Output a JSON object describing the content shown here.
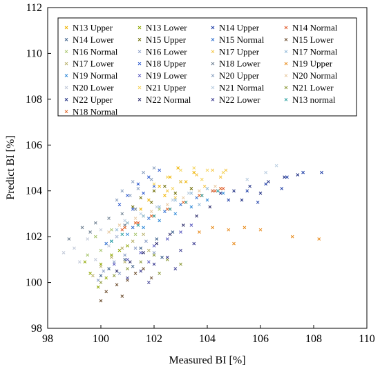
{
  "chart_data": {
    "type": "scatter",
    "xlabel": "Measured BI [%]",
    "ylabel": "Predict BI [%]",
    "xlim": [
      98,
      110
    ],
    "ylim": [
      98,
      112
    ],
    "xticks": [
      "98",
      "100",
      "102",
      "104",
      "106",
      "108",
      "110"
    ],
    "yticks": [
      "98",
      "100",
      "102",
      "104",
      "106",
      "108",
      "110",
      "112"
    ],
    "grid": false,
    "legend_position": "top",
    "marker": "x",
    "series": [
      {
        "name": "N13 Upper",
        "color": "#f0b400",
        "points": [
          [
            101.8,
            103.6
          ],
          [
            102.2,
            104.2
          ],
          [
            102.6,
            104.6
          ],
          [
            102.9,
            105.0
          ],
          [
            103.2,
            104.4
          ],
          [
            102.4,
            103.8
          ],
          [
            101.5,
            103.2
          ],
          [
            103.5,
            104.8
          ]
        ]
      },
      {
        "name": "N13 Lower",
        "color": "#8fa800",
        "points": [
          [
            99.6,
            100.4
          ],
          [
            100.0,
            100.8
          ],
          [
            100.4,
            101.2
          ],
          [
            100.2,
            100.2
          ],
          [
            99.9,
            99.8
          ],
          [
            100.7,
            101.4
          ],
          [
            101.0,
            101.6
          ],
          [
            99.4,
            100.9
          ]
        ]
      },
      {
        "name": "N14 Upper",
        "color": "#1f3fa8",
        "points": [
          [
            104.8,
            103.6
          ],
          [
            105.5,
            104.0
          ],
          [
            106.2,
            104.3
          ],
          [
            107.0,
            104.6
          ],
          [
            107.6,
            104.8
          ],
          [
            106.8,
            104.1
          ],
          [
            108.3,
            104.8
          ],
          [
            105.9,
            103.5
          ]
        ]
      },
      {
        "name": "N14 Normal",
        "color": "#e0592a",
        "points": [
          [
            101.4,
            102.6
          ],
          [
            102.0,
            102.9
          ],
          [
            102.6,
            103.2
          ],
          [
            103.2,
            103.5
          ],
          [
            103.8,
            103.8
          ],
          [
            104.3,
            104.0
          ],
          [
            100.8,
            102.3
          ],
          [
            104.6,
            104.1
          ]
        ]
      },
      {
        "name": "N14 Lower",
        "color": "#3b5f8a",
        "points": [
          [
            100.3,
            100.6
          ],
          [
            100.9,
            101.0
          ],
          [
            101.5,
            101.5
          ],
          [
            102.1,
            101.9
          ],
          [
            102.7,
            102.2
          ],
          [
            101.2,
            100.7
          ],
          [
            100.0,
            100.3
          ],
          [
            102.3,
            101.1
          ]
        ]
      },
      {
        "name": "N15 Upper",
        "color": "#6b6a00",
        "points": [
          [
            101.5,
            103.7
          ],
          [
            102.0,
            104.0
          ],
          [
            102.4,
            104.2
          ],
          [
            103.0,
            104.4
          ],
          [
            101.2,
            103.3
          ],
          [
            102.8,
            103.9
          ],
          [
            103.4,
            104.1
          ],
          [
            101.9,
            103.5
          ]
        ]
      },
      {
        "name": "N15 Normal",
        "color": "#2f6fd0",
        "points": [
          [
            100.6,
            102.0
          ],
          [
            101.2,
            102.4
          ],
          [
            101.8,
            102.8
          ],
          [
            102.4,
            103.1
          ],
          [
            103.0,
            103.4
          ],
          [
            103.6,
            103.7
          ],
          [
            104.2,
            104.0
          ],
          [
            100.2,
            101.7
          ]
        ]
      },
      {
        "name": "N15 Lower",
        "color": "#6a4a2a",
        "points": [
          [
            100.2,
            99.6
          ],
          [
            100.6,
            99.9
          ],
          [
            101.0,
            100.1
          ],
          [
            101.3,
            100.4
          ],
          [
            101.6,
            100.6
          ],
          [
            100.0,
            99.2
          ],
          [
            101.9,
            100.2
          ],
          [
            100.8,
            99.4
          ]
        ]
      },
      {
        "name": "N16 Normal",
        "color": "#a6c46a",
        "points": [
          [
            99.8,
            102.0
          ],
          [
            100.4,
            102.3
          ],
          [
            101.0,
            102.6
          ],
          [
            101.6,
            102.9
          ],
          [
            102.2,
            103.2
          ],
          [
            100.0,
            101.4
          ],
          [
            99.5,
            101.2
          ],
          [
            101.3,
            102.1
          ]
        ]
      },
      {
        "name": "N16 Lower",
        "color": "#8a9ec8",
        "points": [
          [
            100.1,
            100.5
          ],
          [
            100.5,
            100.9
          ],
          [
            100.9,
            101.2
          ],
          [
            101.3,
            101.5
          ],
          [
            101.7,
            101.8
          ],
          [
            99.9,
            100.1
          ],
          [
            102.0,
            101.3
          ],
          [
            100.7,
            100.4
          ]
        ]
      },
      {
        "name": "N17 Upper",
        "color": "#f5c542",
        "points": [
          [
            102.5,
            104.0
          ],
          [
            103.0,
            104.4
          ],
          [
            103.6,
            104.7
          ],
          [
            104.2,
            104.9
          ],
          [
            104.7,
            104.9
          ],
          [
            102.8,
            103.7
          ],
          [
            103.9,
            104.2
          ],
          [
            104.5,
            104.6
          ]
        ]
      },
      {
        "name": "N17 Normal",
        "color": "#8fb8d8",
        "points": [
          [
            101.0,
            102.6
          ],
          [
            101.6,
            102.9
          ],
          [
            102.2,
            103.3
          ],
          [
            102.8,
            103.6
          ],
          [
            103.4,
            103.9
          ],
          [
            104.0,
            104.1
          ],
          [
            100.6,
            102.3
          ],
          [
            103.7,
            103.4
          ]
        ]
      },
      {
        "name": "N17 Lower",
        "color": "#b7b06a",
        "points": [
          [
            100.0,
            100.7
          ],
          [
            100.4,
            101.1
          ],
          [
            100.8,
            101.5
          ],
          [
            101.2,
            101.8
          ],
          [
            101.6,
            102.1
          ],
          [
            99.7,
            100.3
          ],
          [
            101.8,
            101.4
          ],
          [
            100.9,
            100.9
          ]
        ]
      },
      {
        "name": "N18 Upper",
        "color": "#2e5bd0",
        "points": [
          [
            101.0,
            103.8
          ],
          [
            101.4,
            104.3
          ],
          [
            101.8,
            104.6
          ],
          [
            102.2,
            104.9
          ],
          [
            100.7,
            103.4
          ],
          [
            101.6,
            103.9
          ],
          [
            102.0,
            104.2
          ],
          [
            101.2,
            103.2
          ]
        ]
      },
      {
        "name": "N18 Lower",
        "color": "#6b7d8f",
        "points": [
          [
            99.3,
            102.4
          ],
          [
            99.8,
            102.6
          ],
          [
            100.3,
            102.8
          ],
          [
            100.8,
            103.0
          ],
          [
            101.3,
            103.2
          ],
          [
            98.8,
            101.9
          ],
          [
            99.6,
            102.2
          ],
          [
            100.9,
            102.5
          ]
        ]
      },
      {
        "name": "N19 Upper",
        "color": "#e88a1a",
        "points": [
          [
            103.7,
            102.2
          ],
          [
            104.2,
            102.4
          ],
          [
            104.8,
            102.3
          ],
          [
            105.4,
            102.4
          ],
          [
            106.0,
            102.3
          ],
          [
            107.2,
            102.0
          ],
          [
            108.2,
            101.9
          ],
          [
            105.0,
            101.7
          ]
        ]
      },
      {
        "name": "N19 Normal",
        "color": "#2c88d8",
        "points": [
          [
            100.4,
            101.8
          ],
          [
            101.0,
            102.1
          ],
          [
            101.6,
            102.4
          ],
          [
            102.2,
            102.7
          ],
          [
            102.8,
            103.0
          ],
          [
            103.4,
            103.3
          ],
          [
            104.0,
            103.6
          ],
          [
            104.6,
            103.9
          ]
        ]
      },
      {
        "name": "N19 Lower",
        "color": "#5a5ac0",
        "points": [
          [
            100.5,
            100.8
          ],
          [
            101.0,
            101.0
          ],
          [
            101.5,
            101.3
          ],
          [
            102.0,
            101.6
          ],
          [
            102.5,
            101.9
          ],
          [
            103.0,
            102.2
          ],
          [
            103.4,
            102.5
          ],
          [
            101.8,
            100.9
          ]
        ]
      },
      {
        "name": "N20 Upper",
        "color": "#8aa0c0",
        "points": [
          [
            100.8,
            104.0
          ],
          [
            101.2,
            104.4
          ],
          [
            101.6,
            104.8
          ],
          [
            102.0,
            105.0
          ],
          [
            100.6,
            103.6
          ],
          [
            101.4,
            104.1
          ],
          [
            101.9,
            104.5
          ],
          [
            101.1,
            103.8
          ]
        ]
      },
      {
        "name": "N20 Normal",
        "color": "#e8c9a0",
        "points": [
          [
            100.7,
            102.5
          ],
          [
            101.3,
            102.8
          ],
          [
            101.9,
            103.1
          ],
          [
            102.5,
            103.4
          ],
          [
            103.1,
            103.7
          ],
          [
            103.7,
            104.0
          ],
          [
            100.3,
            102.2
          ],
          [
            104.3,
            104.2
          ]
        ]
      },
      {
        "name": "N20 Lower",
        "color": "#c0c8d8",
        "points": [
          [
            99.0,
            101.5
          ],
          [
            99.5,
            101.9
          ],
          [
            100.0,
            102.3
          ],
          [
            98.6,
            101.3
          ],
          [
            99.8,
            101.0
          ],
          [
            100.3,
            101.6
          ],
          [
            99.2,
            100.9
          ],
          [
            100.6,
            102.0
          ]
        ]
      },
      {
        "name": "N21 Upper",
        "color": "#f5d560",
        "points": [
          [
            102.0,
            104.3
          ],
          [
            102.5,
            104.6
          ],
          [
            103.0,
            104.9
          ],
          [
            103.5,
            105.0
          ],
          [
            104.0,
            104.9
          ],
          [
            104.6,
            104.8
          ],
          [
            102.7,
            104.1
          ],
          [
            103.8,
            104.5
          ]
        ]
      },
      {
        "name": "N21 Normal",
        "color": "#b8cce0",
        "points": [
          [
            100.9,
            102.7
          ],
          [
            101.5,
            103.0
          ],
          [
            102.1,
            103.3
          ],
          [
            102.7,
            103.6
          ],
          [
            103.3,
            103.9
          ],
          [
            105.5,
            104.5
          ],
          [
            106.2,
            104.8
          ],
          [
            106.6,
            105.1
          ]
        ]
      },
      {
        "name": "N21 Lower",
        "color": "#8c9a3a",
        "points": [
          [
            100.0,
            100.0
          ],
          [
            100.5,
            100.3
          ],
          [
            101.0,
            100.6
          ],
          [
            101.5,
            100.9
          ],
          [
            102.0,
            101.2
          ],
          [
            102.5,
            101.0
          ],
          [
            103.0,
            100.8
          ],
          [
            102.2,
            100.4
          ]
        ]
      },
      {
        "name": "N22 Upper",
        "color": "#1a2a80",
        "points": [
          [
            104.5,
            103.9
          ],
          [
            105.0,
            104.0
          ],
          [
            105.6,
            104.2
          ],
          [
            106.3,
            104.4
          ],
          [
            106.9,
            104.6
          ],
          [
            107.4,
            104.7
          ],
          [
            105.3,
            103.6
          ],
          [
            106.0,
            103.9
          ]
        ]
      },
      {
        "name": "N22 Normal",
        "color": "#2a2a6a",
        "points": [
          [
            100.6,
            100.5
          ],
          [
            101.1,
            100.9
          ],
          [
            101.6,
            101.3
          ],
          [
            102.1,
            101.7
          ],
          [
            102.6,
            102.1
          ],
          [
            103.1,
            102.5
          ],
          [
            103.6,
            102.9
          ],
          [
            104.1,
            103.3
          ]
        ]
      },
      {
        "name": "N22 Lower",
        "color": "#3a3a90",
        "points": [
          [
            101.0,
            100.2
          ],
          [
            101.5,
            100.5
          ],
          [
            102.0,
            100.8
          ],
          [
            102.5,
            101.1
          ],
          [
            103.0,
            101.4
          ],
          [
            103.5,
            101.7
          ],
          [
            101.8,
            100.0
          ],
          [
            102.8,
            100.6
          ]
        ]
      },
      {
        "name": "N13 normal",
        "color": "#2aa0a0",
        "points": [
          [
            100.8,
            102.1
          ],
          [
            101.4,
            102.5
          ],
          [
            102.0,
            102.9
          ],
          [
            102.6,
            103.2
          ],
          [
            103.2,
            103.5
          ],
          [
            103.8,
            103.8
          ],
          [
            100.4,
            101.8
          ],
          [
            104.4,
            104.0
          ]
        ]
      },
      {
        "name": "N18 Normal",
        "color": "#e06020",
        "points": [
          [
            101.3,
            102.6
          ],
          [
            101.9,
            102.9
          ],
          [
            102.5,
            103.2
          ],
          [
            103.1,
            103.5
          ],
          [
            103.7,
            103.8
          ],
          [
            104.2,
            104.0
          ],
          [
            100.9,
            102.4
          ],
          [
            104.5,
            104.1
          ]
        ]
      }
    ]
  }
}
